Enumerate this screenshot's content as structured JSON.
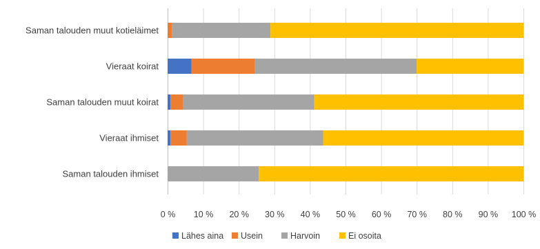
{
  "chart_data": {
    "type": "bar",
    "orientation": "horizontal",
    "stacked": "percent",
    "categories": [
      "Saman talouden muut kotieläimet",
      "Vieraat koirat",
      "Saman talouden muut koirat",
      "Vieraat ihmiset",
      "Saman talouden ihmiset"
    ],
    "series": [
      {
        "name": "Lähes aina",
        "color": "#4472c4",
        "values": [
          0,
          6.7,
          0.8,
          0.8,
          0
        ]
      },
      {
        "name": "Usein",
        "color": "#ed7d31",
        "values": [
          1.2,
          17.8,
          3.6,
          4.6,
          0
        ]
      },
      {
        "name": "Harvoin",
        "color": "#a5a5a5",
        "values": [
          27.7,
          45.5,
          36.8,
          38.3,
          25.6
        ]
      },
      {
        "name": "Ei osoita",
        "color": "#ffc000",
        "values": [
          71.1,
          30.0,
          58.8,
          56.3,
          74.4
        ]
      }
    ],
    "xlim": [
      0,
      100
    ],
    "x_ticks": [
      "0 %",
      "10 %",
      "20 %",
      "30 %",
      "40 %",
      "50 %",
      "60 %",
      "70 %",
      "80 %",
      "90 %",
      "100 %"
    ],
    "grid": true,
    "legend_position": "bottom"
  }
}
